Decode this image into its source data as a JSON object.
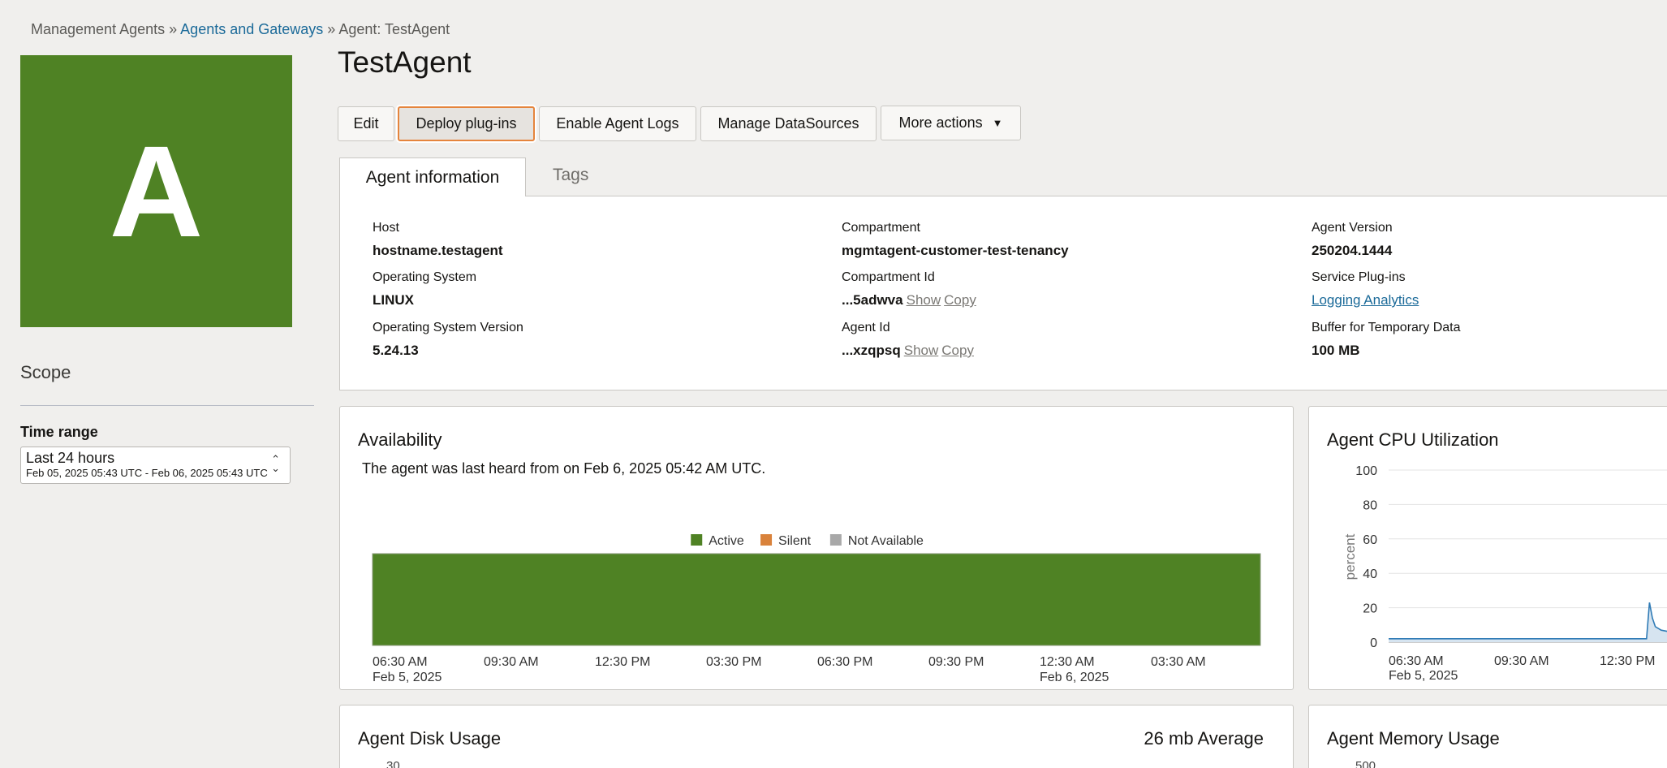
{
  "breadcrumb": {
    "items": [
      "Management Agents",
      "Agents and Gateways",
      "Agent: TestAgent"
    ],
    "separator": "»"
  },
  "avatar": {
    "letter": "A",
    "color": "#4f8224"
  },
  "page_title": "TestAgent",
  "toolbar": {
    "edit": "Edit",
    "deploy": "Deploy plug-ins",
    "enable_logs": "Enable Agent Logs",
    "manage_ds": "Manage DataSources",
    "more": "More actions",
    "more_icon": "▼"
  },
  "tabs": [
    {
      "label": "Agent information",
      "active": true
    },
    {
      "label": "Tags",
      "active": false
    }
  ],
  "info": {
    "host_label": "Host",
    "host": "hostname.testagent",
    "os_label": "Operating System",
    "os": "LINUX",
    "osv_label": "Operating System Version",
    "osv": "5.24.13",
    "compartment_label": "Compartment",
    "compartment": "mgmtagent-customer-test-tenancy",
    "compartment_id_label": "Compartment Id",
    "compartment_id": "...5adwva",
    "agent_id_label": "Agent Id",
    "agent_id": "...xzqpsq",
    "show": "Show",
    "copy": "Copy",
    "version_label": "Agent Version",
    "version": "250204.1444",
    "plugins_label": "Service Plug-ins",
    "plugins": "Logging Analytics",
    "buffer_label": "Buffer for Temporary Data",
    "buffer": "100 MB"
  },
  "sidebar": {
    "scope": "Scope",
    "time_range_label": "Time range",
    "time_range_value": "Last 24 hours",
    "time_range_detail": "Feb 05, 2025 05:43 UTC - Feb 06, 2025 05:43 UTC"
  },
  "availability": {
    "title": "Availability",
    "message": "The agent was last heard from on Feb 6, 2025 05:42 AM UTC."
  },
  "cpu": {
    "title": "Agent CPU Utilization"
  },
  "disk": {
    "title": "Agent Disk Usage",
    "average": "26 mb Average"
  },
  "memory": {
    "title": "Agent Memory Usage"
  },
  "chart_data": [
    {
      "type": "bar",
      "title": "Availability",
      "legend": [
        {
          "name": "Active",
          "color": "#4f8224"
        },
        {
          "name": "Silent",
          "color": "#d9823b"
        },
        {
          "name": "Not Available",
          "color": "#a8a8a8"
        }
      ],
      "legend_position": "top",
      "segments": [
        {
          "status": "Active",
          "start": "Feb 5, 2025 05:43",
          "end": "Feb 6, 2025 05:43"
        }
      ],
      "x_ticks": [
        {
          "time": "06:30 AM",
          "date": "Feb 5, 2025"
        },
        {
          "time": "09:30 AM"
        },
        {
          "time": "12:30 PM"
        },
        {
          "time": "03:30 PM"
        },
        {
          "time": "06:30 PM"
        },
        {
          "time": "09:30 PM"
        },
        {
          "time": "12:30 AM",
          "date": "Feb 6, 2025"
        },
        {
          "time": "03:30 AM"
        }
      ]
    },
    {
      "type": "area",
      "title": "Agent CPU Utilization",
      "ylabel": "percent",
      "ylim": [
        0,
        100
      ],
      "y_ticks": [
        "100",
        "80",
        "60",
        "40",
        "20",
        "0"
      ],
      "grid": true,
      "color": "#2f7bb6",
      "x_ticks": [
        {
          "time": "06:30 AM",
          "date": "Feb 5, 2025"
        },
        {
          "time": "09:30 AM"
        },
        {
          "time": "12:30 PM"
        }
      ],
      "points": [
        {
          "t": "06:30",
          "v": 2
        },
        {
          "t": "13:50",
          "v": 2
        },
        {
          "t": "13:55",
          "v": 23
        },
        {
          "t": "14:00",
          "v": 14
        },
        {
          "t": "14:05",
          "v": 9
        },
        {
          "t": "14:15",
          "v": 7
        },
        {
          "t": "14:30",
          "v": 6
        }
      ]
    },
    {
      "type": "line",
      "title": "Agent Disk Usage",
      "y_ticks": [
        "30"
      ]
    },
    {
      "type": "line",
      "title": "Agent Memory Usage",
      "y_ticks": [
        "500"
      ]
    }
  ]
}
